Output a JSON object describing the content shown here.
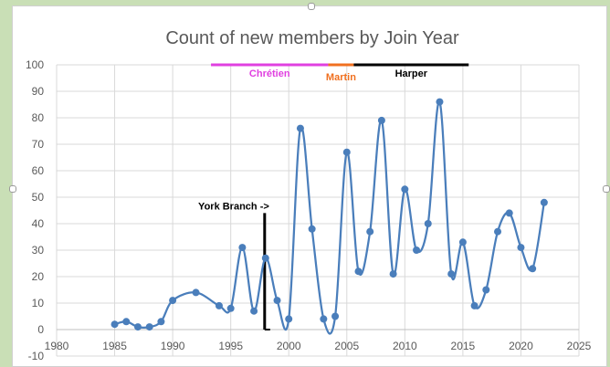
{
  "chart_data": {
    "type": "scatter",
    "title": "Count of new members by Join Year",
    "xlabel": "",
    "ylabel": "",
    "xlim": [
      1980,
      2025
    ],
    "ylim": [
      -10,
      100
    ],
    "xticks": [
      1980,
      1985,
      1990,
      1995,
      2000,
      2005,
      2010,
      2015,
      2020,
      2025
    ],
    "yticks": [
      -10,
      0,
      10,
      20,
      30,
      40,
      50,
      60,
      70,
      80,
      90,
      100
    ],
    "grid": true,
    "legend": "none",
    "smooth": true,
    "series": [
      {
        "color": "#4a7ebb",
        "points": [
          {
            "x": 1985,
            "y": 2
          },
          {
            "x": 1986,
            "y": 3
          },
          {
            "x": 1987,
            "y": 1
          },
          {
            "x": 1988,
            "y": 1
          },
          {
            "x": 1989,
            "y": 3
          },
          {
            "x": 1990,
            "y": 11
          },
          {
            "x": 1992,
            "y": 14
          },
          {
            "x": 1994,
            "y": 9
          },
          {
            "x": 1995,
            "y": 8
          },
          {
            "x": 1996,
            "y": 31
          },
          {
            "x": 1997,
            "y": 7
          },
          {
            "x": 1998,
            "y": 27
          },
          {
            "x": 1999,
            "y": 11
          },
          {
            "x": 2000,
            "y": 4
          },
          {
            "x": 2001,
            "y": 76
          },
          {
            "x": 2002,
            "y": 38
          },
          {
            "x": 2003,
            "y": 4
          },
          {
            "x": 2004,
            "y": 5
          },
          {
            "x": 2005,
            "y": 67
          },
          {
            "x": 2006,
            "y": 22
          },
          {
            "x": 2007,
            "y": 37
          },
          {
            "x": 2008,
            "y": 79
          },
          {
            "x": 2009,
            "y": 21
          },
          {
            "x": 2010,
            "y": 53
          },
          {
            "x": 2011,
            "y": 30
          },
          {
            "x": 2012,
            "y": 40
          },
          {
            "x": 2013,
            "y": 86
          },
          {
            "x": 2014,
            "y": 21
          },
          {
            "x": 2015,
            "y": 33
          },
          {
            "x": 2016,
            "y": 9
          },
          {
            "x": 2017,
            "y": 15
          },
          {
            "x": 2018,
            "y": 37
          },
          {
            "x": 2019,
            "y": 44
          },
          {
            "x": 2020,
            "y": 31
          },
          {
            "x": 2021,
            "y": 23
          },
          {
            "x": 2022,
            "y": 48
          }
        ]
      }
    ],
    "annotations": [
      {
        "kind": "period",
        "text": "Chrétien",
        "start": 1993.3,
        "end": 2003.4,
        "y": 100,
        "color": "#e040e0"
      },
      {
        "kind": "period",
        "text": "Martin",
        "start": 2003.4,
        "end": 2005.6,
        "y": 100,
        "color": "#f07020"
      },
      {
        "kind": "period",
        "text": "Harper",
        "start": 2005.6,
        "end": 2015.5,
        "y": 100,
        "color": "#000000"
      },
      {
        "kind": "marker",
        "text": "York Branch ->",
        "x": 1998,
        "y_top": 44,
        "y_bottom": 0,
        "color": "#000000"
      }
    ]
  }
}
